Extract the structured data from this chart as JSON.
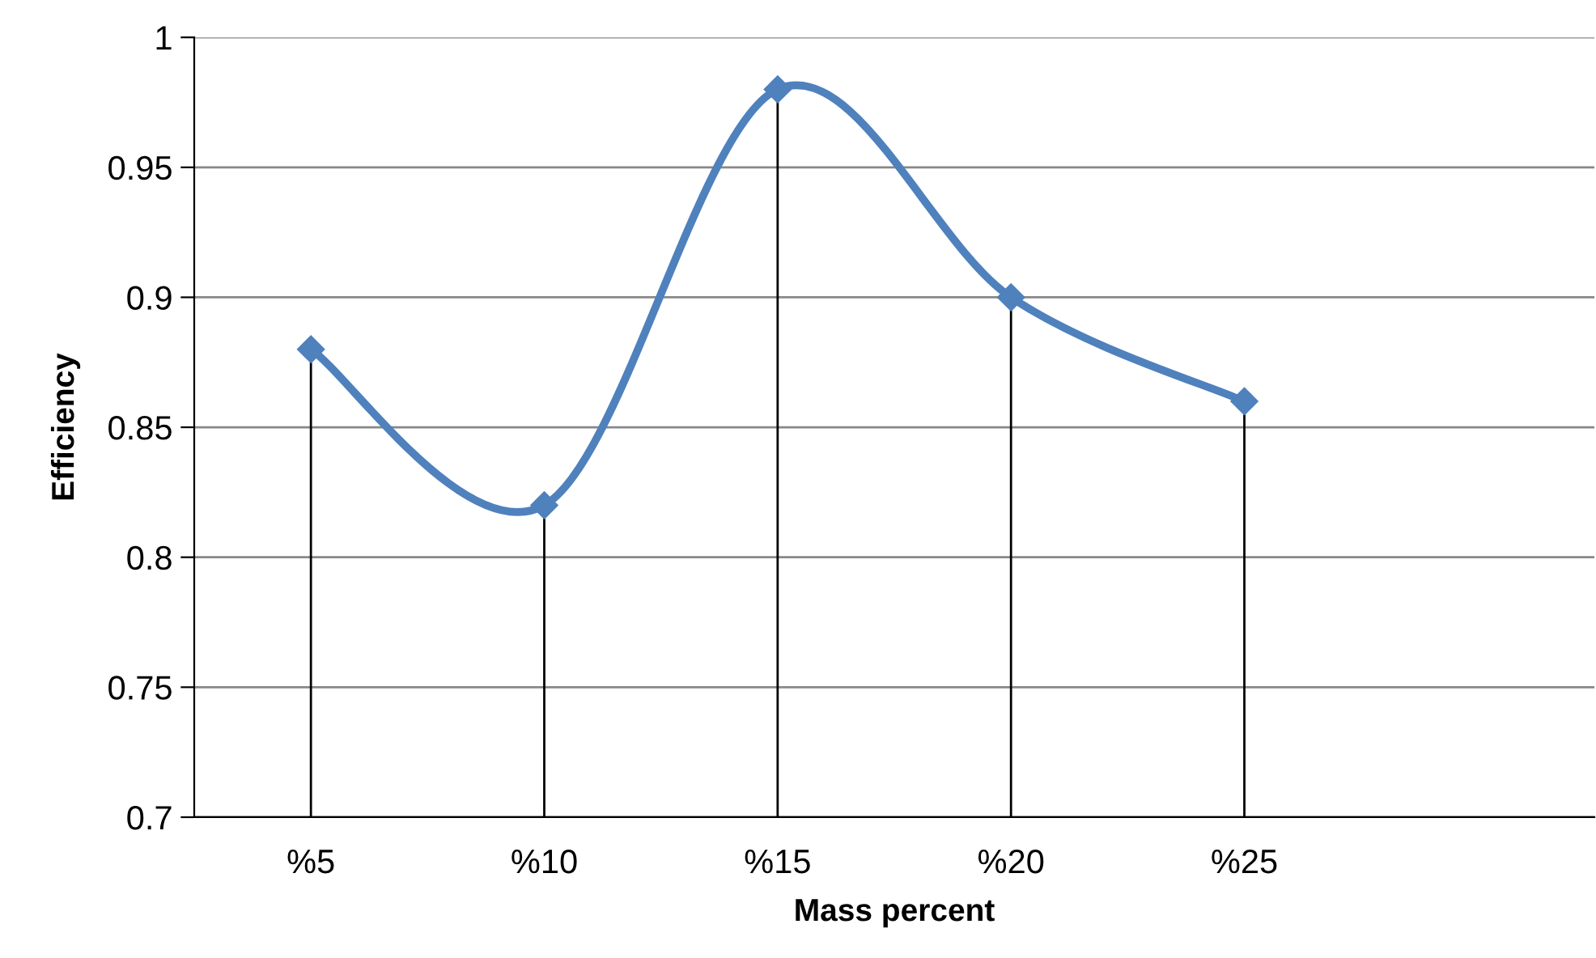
{
  "chart_data": {
    "type": "line",
    "xlabel": "Mass percent",
    "ylabel": "Efficiency",
    "categories": [
      "%5",
      "%10",
      "%15",
      "%20",
      "%25",
      null
    ],
    "series": [
      {
        "color": "#4f81bd",
        "values": [
          0.88,
          0.82,
          0.98,
          0.9,
          0.86,
          null
        ]
      },
      {
        "type": "lollipop",
        "color": "#4f81bd",
        "marker": "diamond",
        "values": [
          0.88,
          0.82,
          0.98,
          0.9,
          0.86,
          null
        ]
      }
    ],
    "ylim": [
      0.7,
      1
    ],
    "yticks": [
      0.7,
      0.75,
      0.8,
      0.85,
      0.9,
      0.95,
      1
    ],
    "grid": "y",
    "line_style": "solid"
  }
}
